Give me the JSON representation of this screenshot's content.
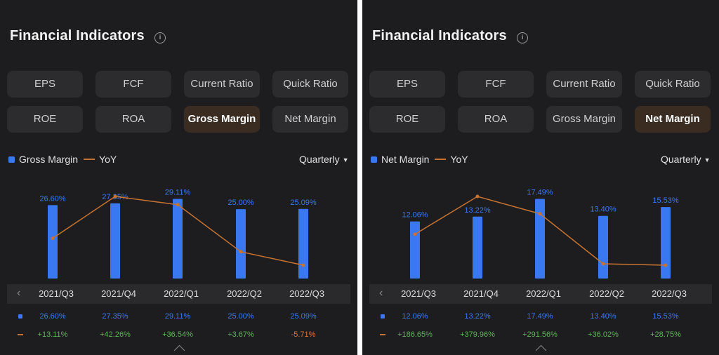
{
  "panels": [
    {
      "id": "left",
      "title": "Financial Indicators",
      "buttons": [
        "EPS",
        "FCF",
        "Current Ratio",
        "Quick Ratio",
        "ROE",
        "ROA",
        "Gross Margin",
        "Net Margin"
      ],
      "active": "Gross Margin",
      "legend": {
        "metric": "Gross Margin",
        "yoy": "YoY"
      },
      "period": "Quarterly",
      "chart_data": {
        "type": "bar",
        "categories": [
          "2021/Q3",
          "2021/Q4",
          "2022/Q1",
          "2022/Q2",
          "2022/Q3"
        ],
        "values": [
          26.6,
          27.35,
          29.11,
          25.0,
          25.09
        ],
        "value_labels": [
          "26.60%",
          "27.35%",
          "29.11%",
          "25.00%",
          "25.09%"
        ],
        "yoy": [
          13.11,
          42.26,
          36.54,
          3.67,
          -5.71
        ],
        "yoy_labels": [
          "+13.11%",
          "+42.26%",
          "+36.54%",
          "+3.67%",
          "-5.71%"
        ],
        "series": [
          {
            "name": "Gross Margin"
          },
          {
            "name": "YoY"
          }
        ],
        "colors": {
          "bar": "#3a78f2",
          "line": "#c87330",
          "up": "#5fb35a",
          "down": "#d9743a"
        }
      }
    },
    {
      "id": "right",
      "title": "Financial Indicators",
      "buttons": [
        "EPS",
        "FCF",
        "Current Ratio",
        "Quick Ratio",
        "ROE",
        "ROA",
        "Gross Margin",
        "Net Margin"
      ],
      "active": "Net Margin",
      "legend": {
        "metric": "Net Margin",
        "yoy": "YoY"
      },
      "period": "Quarterly",
      "chart_data": {
        "type": "bar",
        "categories": [
          "2021/Q3",
          "2021/Q4",
          "2022/Q1",
          "2022/Q2",
          "2022/Q3"
        ],
        "values": [
          12.06,
          13.22,
          17.49,
          13.4,
          15.53
        ],
        "value_labels": [
          "12.06%",
          "13.22%",
          "17.49%",
          "13.40%",
          "15.53%"
        ],
        "yoy": [
          186.65,
          379.96,
          291.56,
          36.02,
          28.75
        ],
        "yoy_labels": [
          "+186.65%",
          "+379.96%",
          "+291.56%",
          "+36.02%",
          "+28.75%"
        ],
        "series": [
          {
            "name": "Net Margin"
          },
          {
            "name": "YoY"
          }
        ],
        "colors": {
          "bar": "#3a78f2",
          "line": "#c87330",
          "up": "#5fb35a",
          "down": "#d9743a"
        }
      }
    }
  ],
  "icons": {
    "info": "info-icon",
    "prev": "chevron-left-icon",
    "dropdown": "caret-down-icon",
    "expand": "chevron-up-icon"
  },
  "glyphs": {
    "info": "i",
    "prev": "‹",
    "caret": "▼"
  }
}
